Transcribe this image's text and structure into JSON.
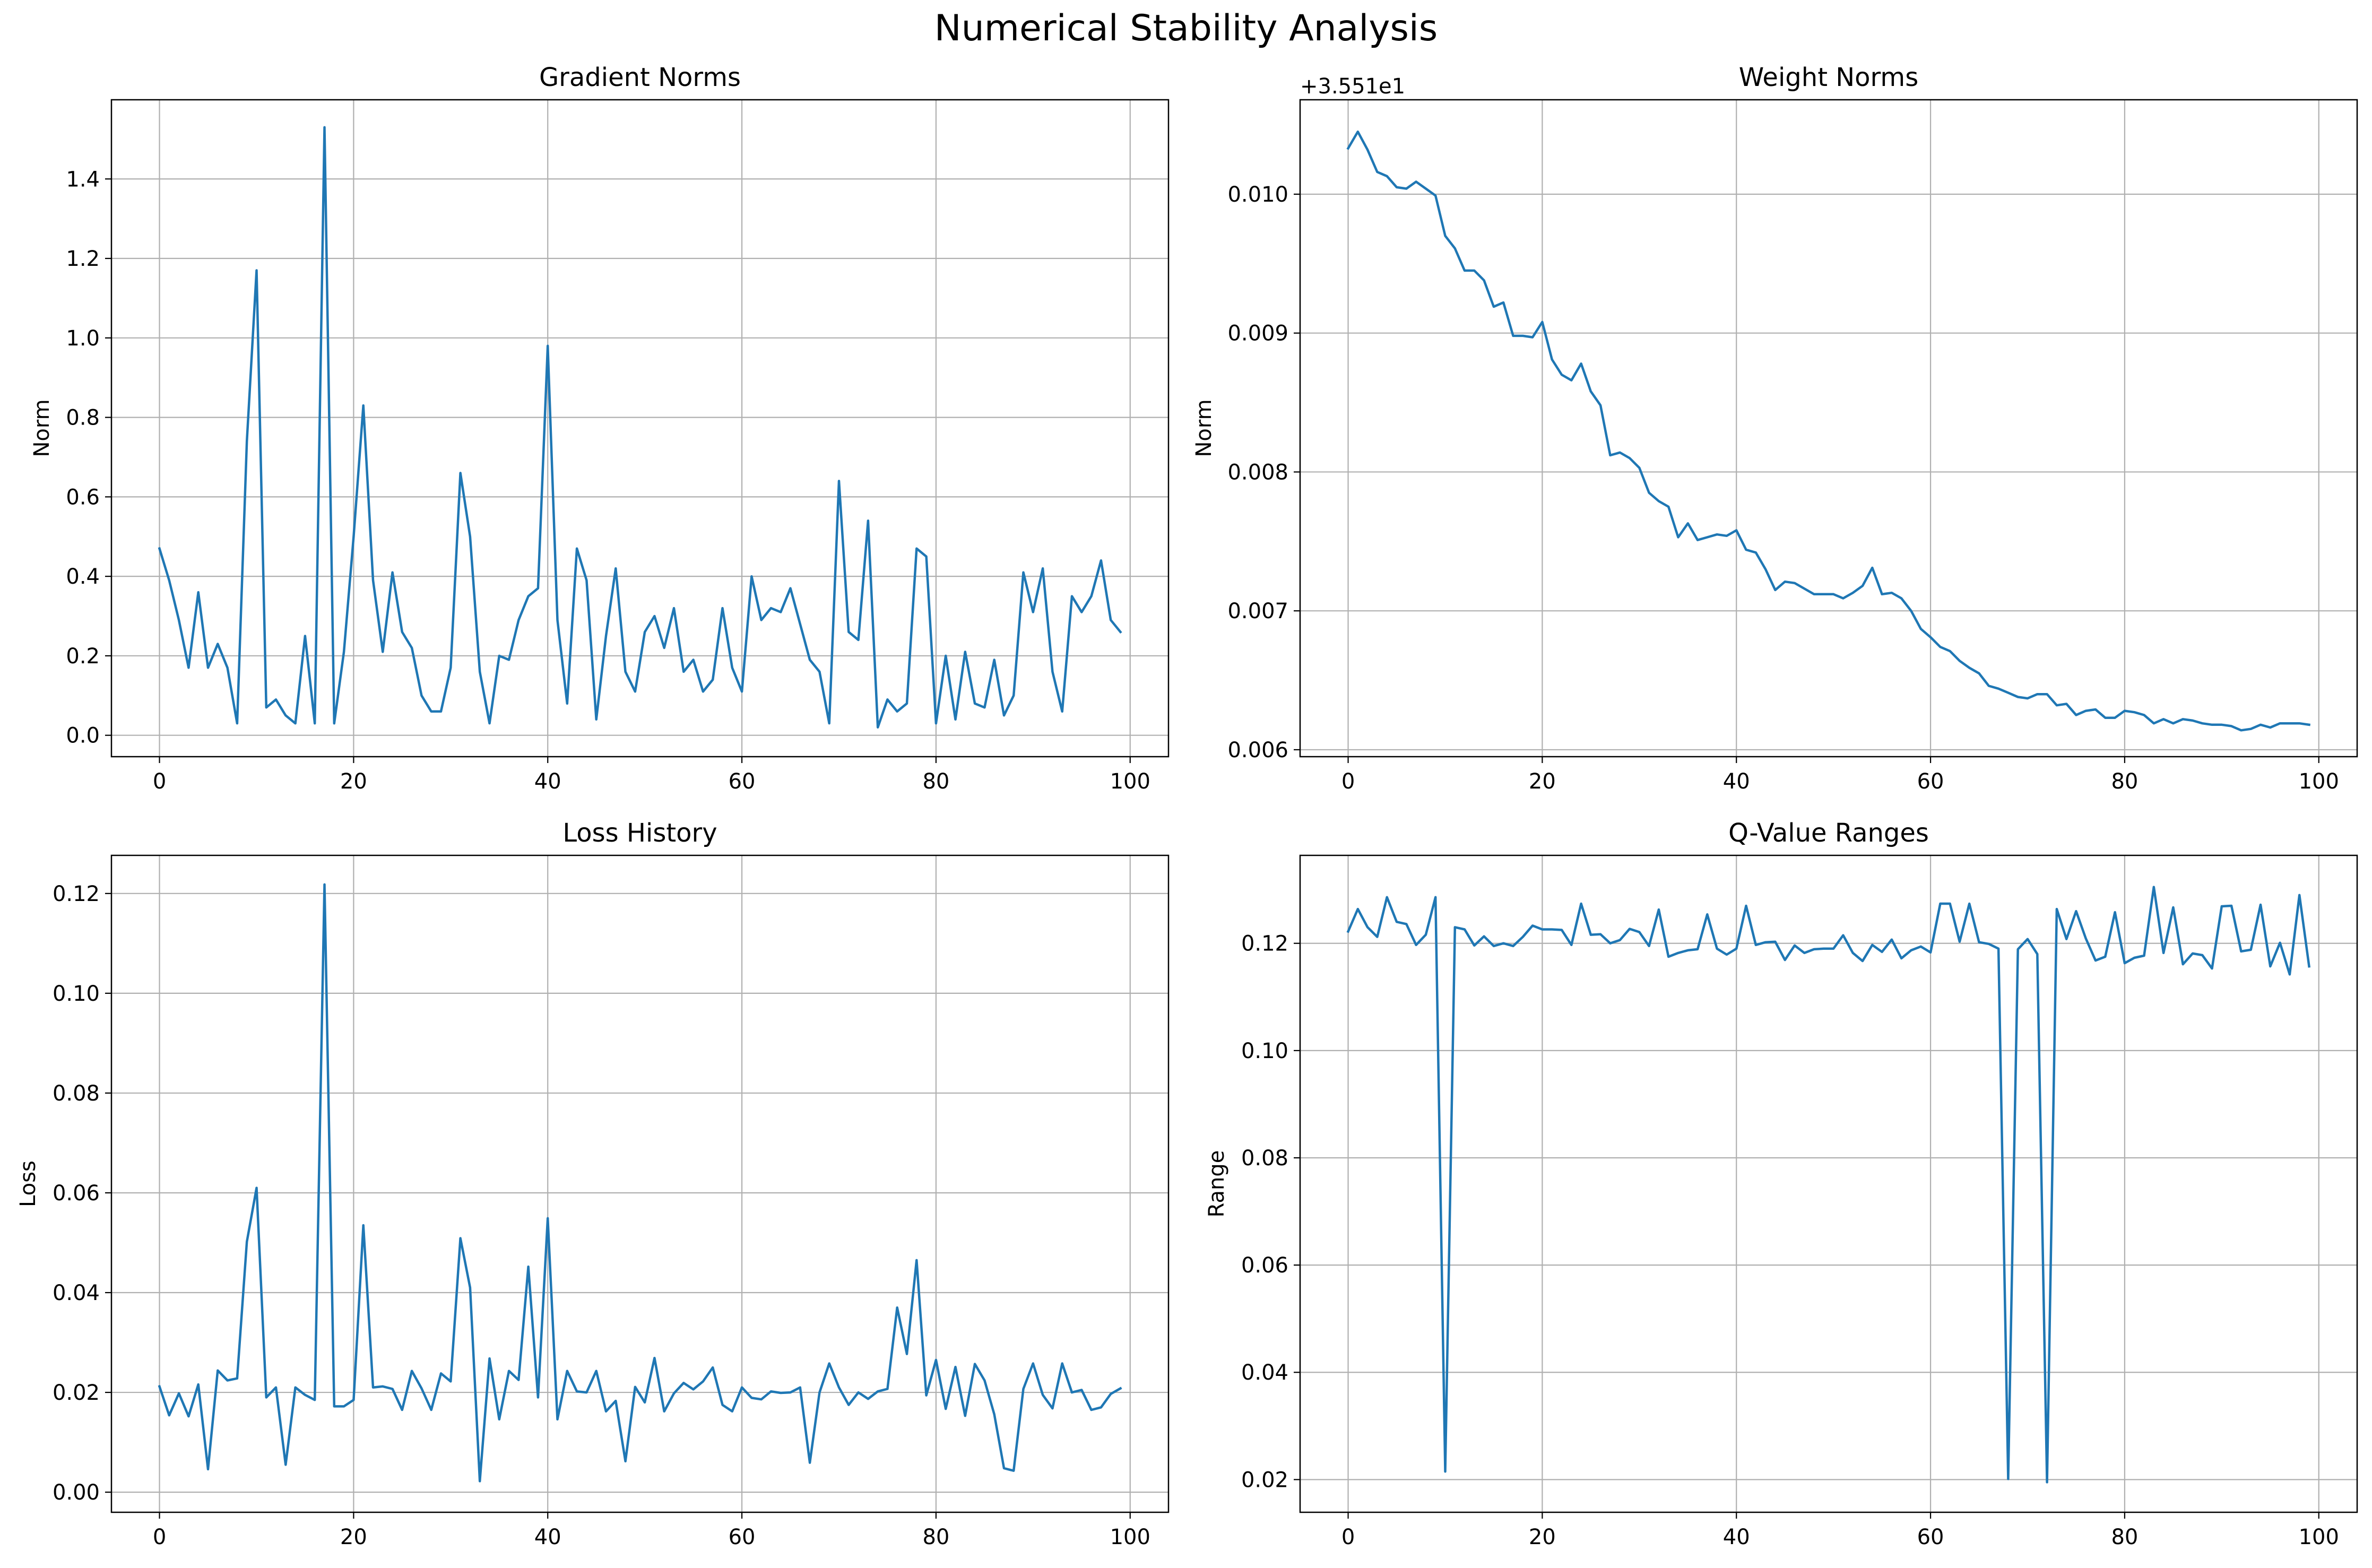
{
  "figure_title": "Numerical Stability Analysis",
  "colors": {
    "line": "#1f77b4",
    "grid": "#b0b0b0",
    "axes": "#000000",
    "background": "#ffffff"
  },
  "chart_data": [
    {
      "type": "line",
      "title": "Gradient Norms",
      "xlabel": "",
      "ylabel": "Norm",
      "xlim": [
        -4.95,
        103.95
      ],
      "ylim": [
        -0.0538,
        1.5993
      ],
      "xticks": [
        0,
        20,
        40,
        60,
        80,
        100
      ],
      "xtick_labels": [
        "0",
        "20",
        "40",
        "60",
        "80",
        "100"
      ],
      "yticks": [
        0.0,
        0.2,
        0.4,
        0.6,
        0.8,
        1.0,
        1.2,
        1.4
      ],
      "ytick_labels": [
        "0.0",
        "0.2",
        "0.4",
        "0.6",
        "0.8",
        "1.0",
        "1.2",
        "1.4"
      ],
      "offset_text": "",
      "grid": true,
      "series": [
        {
          "name": "Gradient Norms",
          "values": [
            0.47,
            0.39,
            0.29,
            0.17,
            0.36,
            0.17,
            0.23,
            0.17,
            0.03,
            0.74,
            1.17,
            0.07,
            0.09,
            0.05,
            0.03,
            0.25,
            0.03,
            1.53,
            0.03,
            0.21,
            0.5,
            0.83,
            0.39,
            0.21,
            0.41,
            0.26,
            0.22,
            0.1,
            0.06,
            0.06,
            0.17,
            0.66,
            0.5,
            0.16,
            0.03,
            0.2,
            0.19,
            0.29,
            0.35,
            0.37,
            0.98,
            0.29,
            0.08,
            0.47,
            0.39,
            0.04,
            0.25,
            0.42,
            0.16,
            0.11,
            0.26,
            0.3,
            0.22,
            0.32,
            0.16,
            0.19,
            0.11,
            0.14,
            0.32,
            0.17,
            0.11,
            0.4,
            0.29,
            0.32,
            0.31,
            0.37,
            0.28,
            0.19,
            0.16,
            0.03,
            0.64,
            0.26,
            0.24,
            0.54,
            0.02,
            0.09,
            0.06,
            0.08,
            0.47,
            0.45,
            0.03,
            0.2,
            0.04,
            0.21,
            0.08,
            0.07,
            0.19,
            0.05,
            0.1,
            0.41,
            0.31,
            0.42,
            0.16,
            0.06,
            0.35,
            0.31,
            0.35,
            0.44,
            0.29,
            0.26
          ]
        }
      ]
    },
    {
      "type": "line",
      "title": "Weight Norms",
      "xlabel": "",
      "ylabel": "Norm",
      "xlim": [
        -4.95,
        103.95
      ],
      "ylim": [
        0.00595,
        0.01068
      ],
      "xticks": [
        0,
        20,
        40,
        60,
        80,
        100
      ],
      "xtick_labels": [
        "0",
        "20",
        "40",
        "60",
        "80",
        "100"
      ],
      "yticks": [
        0.006,
        0.007,
        0.008,
        0.009,
        0.01
      ],
      "ytick_labels": [
        "0.006",
        "0.007",
        "0.008",
        "0.009",
        "0.010"
      ],
      "offset_text": "+3.551e1",
      "grid": true,
      "series": [
        {
          "name": "Weight Norms",
          "values": [
            0.01033,
            0.01045,
            0.01032,
            0.01016,
            0.01013,
            0.01005,
            0.01004,
            0.01009,
            0.01004,
            0.00999,
            0.0097,
            0.00961,
            0.00945,
            0.00945,
            0.00938,
            0.00919,
            0.00922,
            0.00898,
            0.00898,
            0.00897,
            0.00908,
            0.00881,
            0.0087,
            0.00866,
            0.00878,
            0.00858,
            0.00848,
            0.00812,
            0.00814,
            0.0081,
            0.00803,
            0.00785,
            0.00779,
            0.00775,
            0.00753,
            0.00763,
            0.00751,
            0.00753,
            0.00755,
            0.00754,
            0.00758,
            0.00744,
            0.00742,
            0.0073,
            0.00715,
            0.00721,
            0.0072,
            0.00716,
            0.00712,
            0.00712,
            0.00712,
            0.00709,
            0.00713,
            0.00718,
            0.00731,
            0.00712,
            0.00713,
            0.00709,
            0.007,
            0.00687,
            0.00681,
            0.00674,
            0.00671,
            0.00664,
            0.00659,
            0.00655,
            0.00646,
            0.00644,
            0.00641,
            0.00638,
            0.00637,
            0.0064,
            0.0064,
            0.00632,
            0.00633,
            0.00625,
            0.00628,
            0.00629,
            0.00623,
            0.00623,
            0.00628,
            0.00627,
            0.00625,
            0.00619,
            0.00622,
            0.00619,
            0.00622,
            0.00621,
            0.00619,
            0.00618,
            0.00618,
            0.00617,
            0.00614,
            0.00615,
            0.00618,
            0.00616,
            0.00619,
            0.00619,
            0.00619,
            0.00618
          ]
        }
      ]
    },
    {
      "type": "line",
      "title": "Loss History",
      "xlabel": "",
      "ylabel": "Loss",
      "xlim": [
        -4.95,
        103.95
      ],
      "ylim": [
        -0.00403,
        0.12764
      ],
      "xticks": [
        0,
        20,
        40,
        60,
        80,
        100
      ],
      "xtick_labels": [
        "0",
        "20",
        "40",
        "60",
        "80",
        "100"
      ],
      "yticks": [
        0.0,
        0.02,
        0.04,
        0.06,
        0.08,
        0.1,
        0.12
      ],
      "ytick_labels": [
        "0.00",
        "0.02",
        "0.04",
        "0.06",
        "0.08",
        "0.10",
        "0.12"
      ],
      "offset_text": "",
      "grid": true,
      "series": [
        {
          "name": "Loss History",
          "values": [
            0.0212,
            0.0154,
            0.0198,
            0.0152,
            0.0216,
            0.0046,
            0.0244,
            0.0224,
            0.0228,
            0.0502,
            0.061,
            0.019,
            0.021,
            0.0055,
            0.021,
            0.0195,
            0.0185,
            0.1218,
            0.0172,
            0.0172,
            0.0185,
            0.0535,
            0.021,
            0.0212,
            0.0207,
            0.0165,
            0.0243,
            0.0208,
            0.0165,
            0.0238,
            0.0222,
            0.0509,
            0.041,
            0.0022,
            0.0268,
            0.0146,
            0.0243,
            0.0225,
            0.0452,
            0.019,
            0.0549,
            0.0146,
            0.0243,
            0.0202,
            0.02,
            0.0243,
            0.0162,
            0.0183,
            0.0062,
            0.0211,
            0.018,
            0.0269,
            0.0162,
            0.0198,
            0.0219,
            0.0206,
            0.0222,
            0.025,
            0.0175,
            0.0162,
            0.021,
            0.0189,
            0.0186,
            0.0202,
            0.0199,
            0.02,
            0.021,
            0.0059,
            0.02,
            0.0258,
            0.021,
            0.0175,
            0.02,
            0.0187,
            0.0202,
            0.0207,
            0.037,
            0.0277,
            0.0465,
            0.0194,
            0.0265,
            0.0167,
            0.0251,
            0.0153,
            0.0257,
            0.0224,
            0.0156,
            0.0048,
            0.0043,
            0.0207,
            0.0258,
            0.0195,
            0.0168,
            0.0258,
            0.02,
            0.0205,
            0.0165,
            0.017,
            0.0197,
            0.0208
          ]
        }
      ]
    },
    {
      "type": "line",
      "title": "Q-Value Ranges",
      "xlabel": "",
      "ylabel": "Range",
      "xlim": [
        -4.95,
        103.95
      ],
      "ylim": [
        0.0139,
        0.1364
      ],
      "xticks": [
        0,
        20,
        40,
        60,
        80,
        100
      ],
      "xtick_labels": [
        "0",
        "20",
        "40",
        "60",
        "80",
        "100"
      ],
      "yticks": [
        0.02,
        0.04,
        0.06,
        0.08,
        0.1,
        0.12
      ],
      "ytick_labels": [
        "0.02",
        "0.04",
        "0.06",
        "0.08",
        "0.10",
        "0.12"
      ],
      "offset_text": "",
      "grid": true,
      "series": [
        {
          "name": "Q-Value Ranges",
          "values": [
            0.1222,
            0.1264,
            0.123,
            0.1212,
            0.1286,
            0.124,
            0.1236,
            0.1197,
            0.1216,
            0.1286,
            0.0215,
            0.123,
            0.1226,
            0.1196,
            0.1213,
            0.1195,
            0.12,
            0.1195,
            0.1212,
            0.1233,
            0.1226,
            0.1226,
            0.1225,
            0.1197,
            0.1274,
            0.1216,
            0.1217,
            0.12,
            0.1206,
            0.1227,
            0.1221,
            0.1195,
            0.1263,
            0.1175,
            0.1182,
            0.1187,
            0.1189,
            0.1254,
            0.119,
            0.1179,
            0.119,
            0.127,
            0.1197,
            0.1202,
            0.1203,
            0.1169,
            0.1196,
            0.1182,
            0.1189,
            0.119,
            0.119,
            0.1215,
            0.1182,
            0.1167,
            0.1197,
            0.1184,
            0.1207,
            0.1172,
            0.1187,
            0.1194,
            0.1183,
            0.1274,
            0.1274,
            0.1203,
            0.1274,
            0.1202,
            0.1199,
            0.119,
            0.0201,
            0.1189,
            0.1208,
            0.118,
            0.0195,
            0.1264,
            0.1208,
            0.126,
            0.1209,
            0.1168,
            0.1175,
            0.1258,
            0.1163,
            0.1173,
            0.1177,
            0.1305,
            0.1182,
            0.1267,
            0.1161,
            0.1181,
            0.1178,
            0.1153,
            0.1269,
            0.127,
            0.1185,
            0.1188,
            0.1272,
            0.1157,
            0.1201,
            0.1142,
            0.129,
            0.1157
          ]
        }
      ]
    }
  ]
}
